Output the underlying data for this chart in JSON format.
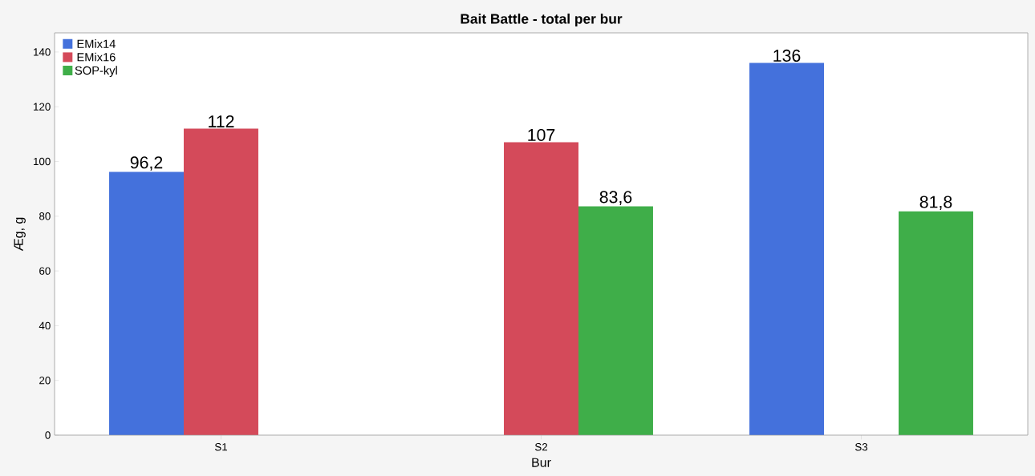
{
  "chart_data": {
    "type": "bar",
    "title": "Bait Battle - total per bur",
    "xlabel": "Bur",
    "ylabel": "Æg, g",
    "categories": [
      "S1",
      "S2",
      "S3"
    ],
    "series": [
      {
        "name": "EMix14",
        "color": "#4471dc",
        "values": [
          96.2,
          null,
          136
        ],
        "value_labels": [
          "96,2",
          null,
          "136"
        ]
      },
      {
        "name": "EMix16",
        "color": "#d44a5a",
        "values": [
          112,
          107,
          null
        ],
        "value_labels": [
          "112",
          "107",
          null
        ]
      },
      {
        "name": "SOP-kyl",
        "color": "#3fae49",
        "values": [
          null,
          83.6,
          81.8
        ],
        "value_labels": [
          null,
          "83,6",
          "81,8"
        ]
      }
    ],
    "ylim": [
      0,
      147
    ],
    "yticks": [
      0,
      20,
      40,
      60,
      80,
      100,
      120,
      140
    ],
    "grid": false,
    "legend": "top left"
  }
}
